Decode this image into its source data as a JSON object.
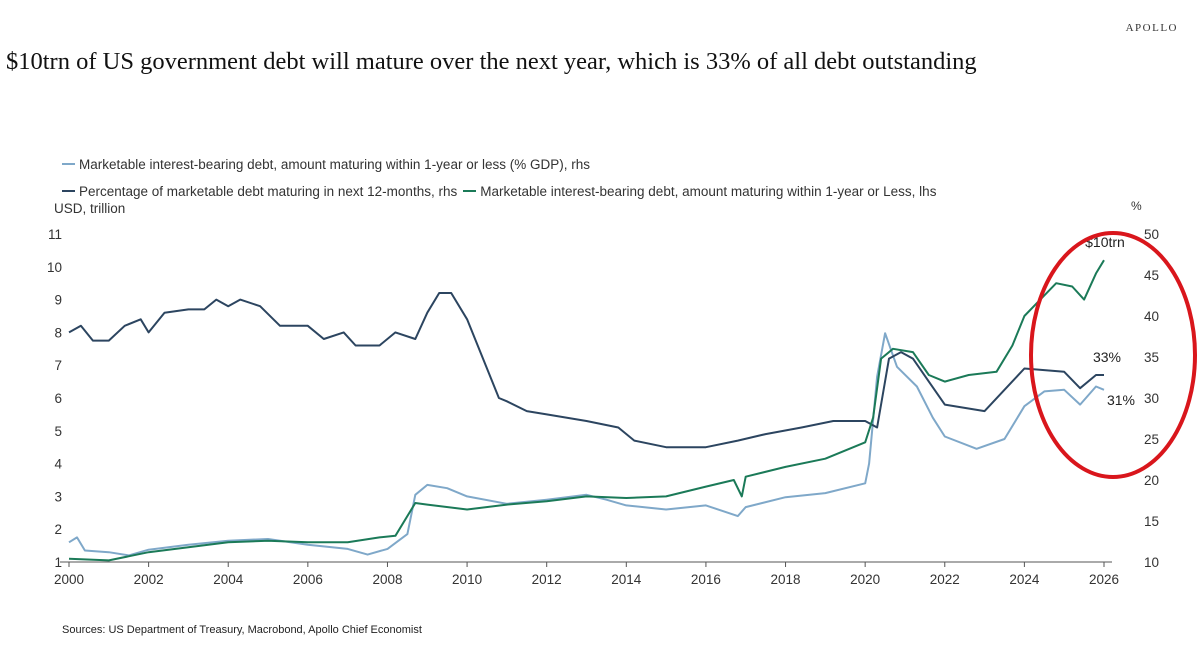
{
  "header": {
    "brand": "APOLLO",
    "title": "$10trn of US government debt will mature over the next year, which is 33% of all debt outstanding"
  },
  "legend": {
    "item1": "Marketable interest-bearing debt, amount maturing within 1-year or less (% GDP), rhs",
    "item2": "Percentage of marketable debt maturing in next 12-months, rhs",
    "item3": "Marketable interest-bearing debt, amount maturing within 1-year or Less, lhs"
  },
  "axes": {
    "left_unit": "USD, trillion",
    "right_unit": "%"
  },
  "source": "Sources: US Department of Treasury, Macrobond, Apollo Chief Economist",
  "colors": {
    "share_line": "#2c4560",
    "gdp_line": "#7fa8c9",
    "usd_line": "#1b7a58",
    "highlight_circle": "#d9161c"
  },
  "chart_data": {
    "type": "line",
    "title": "$10trn of US government debt will mature over the next year, which is 33% of all debt outstanding",
    "xlabel": "",
    "x_ticks": [
      "2000",
      "2002",
      "2004",
      "2006",
      "2008",
      "2010",
      "2012",
      "2014",
      "2016",
      "2018",
      "2020",
      "2022",
      "2024",
      "2026"
    ],
    "xlim": [
      2000,
      2026.5
    ],
    "left_axis": {
      "label": "USD, trillion",
      "ylim": [
        1,
        11
      ],
      "ticks": [
        1,
        2,
        3,
        4,
        5,
        6,
        7,
        8,
        9,
        10,
        11
      ]
    },
    "right_axis": {
      "label": "%",
      "ylim": [
        10,
        50
      ],
      "ticks": [
        "10",
        "15",
        "20",
        "25",
        "30",
        "35",
        "40",
        "45",
        "50"
      ]
    },
    "grid": false,
    "legend_position": "top-left",
    "series": [
      {
        "name": "Marketable interest-bearing debt, amount maturing within 1-year or less (% GDP), rhs",
        "axis": "right",
        "color": "#7fa8c9",
        "points": [
          [
            2000,
            12.4
          ],
          [
            2000.2,
            13.0
          ],
          [
            2000.4,
            11.4
          ],
          [
            2001,
            11.2
          ],
          [
            2001.5,
            10.8
          ],
          [
            2002,
            11.5
          ],
          [
            2003,
            12.1
          ],
          [
            2004,
            12.6
          ],
          [
            2005,
            12.8
          ],
          [
            2006,
            12.1
          ],
          [
            2007,
            11.6
          ],
          [
            2007.5,
            10.9
          ],
          [
            2008,
            11.6
          ],
          [
            2008.5,
            13.4
          ],
          [
            2008.7,
            18.2
          ],
          [
            2009,
            19.4
          ],
          [
            2009.5,
            19.0
          ],
          [
            2010,
            18.0
          ],
          [
            2011,
            17.1
          ],
          [
            2012,
            17.6
          ],
          [
            2013,
            18.2
          ],
          [
            2013.5,
            17.6
          ],
          [
            2014,
            16.9
          ],
          [
            2015,
            16.4
          ],
          [
            2016,
            16.9
          ],
          [
            2016.8,
            15.6
          ],
          [
            2017,
            16.7
          ],
          [
            2018,
            17.9
          ],
          [
            2019,
            18.4
          ],
          [
            2020,
            19.6
          ],
          [
            2020.1,
            22.0
          ],
          [
            2020.3,
            32.6
          ],
          [
            2020.5,
            37.9
          ],
          [
            2020.8,
            33.8
          ],
          [
            2021.3,
            31.4
          ],
          [
            2021.7,
            27.6
          ],
          [
            2022,
            25.3
          ],
          [
            2022.8,
            23.8
          ],
          [
            2023.5,
            25.0
          ],
          [
            2024,
            29.0
          ],
          [
            2024.5,
            30.8
          ],
          [
            2025,
            31.0
          ],
          [
            2025.4,
            29.2
          ],
          [
            2025.8,
            31.4
          ],
          [
            2026,
            31.0
          ]
        ]
      },
      {
        "name": "Percentage of marketable debt maturing in next 12-months, rhs",
        "axis": "right",
        "color": "#2c4560",
        "points": [
          [
            2000,
            38.0
          ],
          [
            2000.3,
            38.8
          ],
          [
            2000.6,
            37.0
          ],
          [
            2001,
            37.0
          ],
          [
            2001.4,
            38.8
          ],
          [
            2001.8,
            39.6
          ],
          [
            2002,
            38.0
          ],
          [
            2002.4,
            40.4
          ],
          [
            2003,
            40.8
          ],
          [
            2003.4,
            40.8
          ],
          [
            2003.7,
            42.0
          ],
          [
            2004,
            41.2
          ],
          [
            2004.3,
            42.0
          ],
          [
            2004.8,
            41.2
          ],
          [
            2005.3,
            38.8
          ],
          [
            2006,
            38.8
          ],
          [
            2006.4,
            37.2
          ],
          [
            2006.9,
            38.0
          ],
          [
            2007.2,
            36.4
          ],
          [
            2007.8,
            36.4
          ],
          [
            2008.2,
            38.0
          ],
          [
            2008.7,
            37.2
          ],
          [
            2009,
            40.4
          ],
          [
            2009.3,
            42.8
          ],
          [
            2009.6,
            42.8
          ],
          [
            2010,
            39.6
          ],
          [
            2010.4,
            34.8
          ],
          [
            2010.8,
            30.0
          ],
          [
            2011,
            29.6
          ],
          [
            2011.5,
            28.4
          ],
          [
            2012,
            28.0
          ],
          [
            2013,
            27.2
          ],
          [
            2013.8,
            26.4
          ],
          [
            2014.2,
            24.8
          ],
          [
            2015,
            24.0
          ],
          [
            2016,
            24.0
          ],
          [
            2016.8,
            24.8
          ],
          [
            2017.5,
            25.6
          ],
          [
            2018.4,
            26.4
          ],
          [
            2019.2,
            27.2
          ],
          [
            2020,
            27.2
          ],
          [
            2020.3,
            26.4
          ],
          [
            2020.6,
            34.8
          ],
          [
            2020.9,
            35.6
          ],
          [
            2021.2,
            34.8
          ],
          [
            2022,
            29.2
          ],
          [
            2023,
            28.4
          ],
          [
            2024,
            33.6
          ],
          [
            2025,
            33.2
          ],
          [
            2025.4,
            31.2
          ],
          [
            2025.8,
            32.8
          ],
          [
            2026,
            32.8
          ]
        ]
      },
      {
        "name": "Marketable interest-bearing debt, amount maturing within 1-year or Less, lhs",
        "axis": "left",
        "color": "#1b7a58",
        "points": [
          [
            2000,
            1.1
          ],
          [
            2001,
            1.05
          ],
          [
            2002,
            1.3
          ],
          [
            2003,
            1.45
          ],
          [
            2004,
            1.6
          ],
          [
            2005,
            1.65
          ],
          [
            2006,
            1.6
          ],
          [
            2007,
            1.6
          ],
          [
            2007.8,
            1.75
          ],
          [
            2008.2,
            1.8
          ],
          [
            2008.7,
            2.8
          ],
          [
            2009,
            2.75
          ],
          [
            2010,
            2.6
          ],
          [
            2011,
            2.75
          ],
          [
            2012,
            2.85
          ],
          [
            2013,
            3.0
          ],
          [
            2014,
            2.95
          ],
          [
            2015,
            3.0
          ],
          [
            2016,
            3.3
          ],
          [
            2016.7,
            3.5
          ],
          [
            2016.9,
            3.0
          ],
          [
            2017,
            3.6
          ],
          [
            2018,
            3.9
          ],
          [
            2019,
            4.15
          ],
          [
            2020,
            4.65
          ],
          [
            2020.2,
            5.4
          ],
          [
            2020.4,
            7.2
          ],
          [
            2020.7,
            7.5
          ],
          [
            2021.2,
            7.4
          ],
          [
            2021.6,
            6.7
          ],
          [
            2022,
            6.5
          ],
          [
            2022.6,
            6.7
          ],
          [
            2023.3,
            6.8
          ],
          [
            2023.7,
            7.6
          ],
          [
            2024,
            8.5
          ],
          [
            2024.4,
            9.0
          ],
          [
            2024.8,
            9.5
          ],
          [
            2025.2,
            9.4
          ],
          [
            2025.5,
            9.0
          ],
          [
            2025.8,
            9.8
          ],
          [
            2026,
            10.2
          ]
        ]
      }
    ],
    "annotations": [
      "$10trn",
      "33%",
      "31%"
    ]
  }
}
